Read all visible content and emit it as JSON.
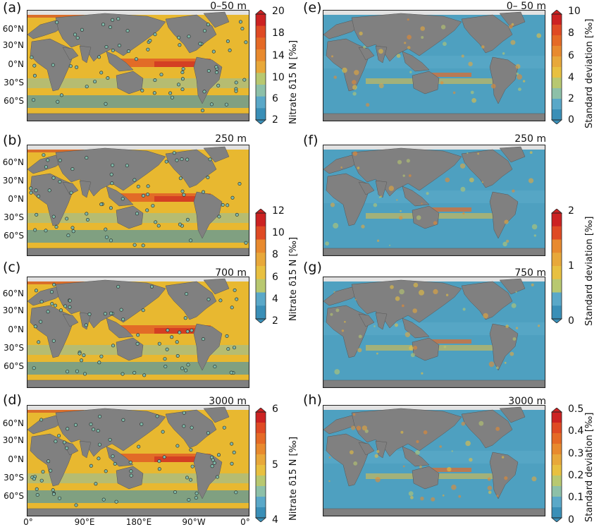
{
  "colors": {
    "land": "#808080",
    "ice": "#e2e2e2",
    "ocean_fill": "#e8b830",
    "ocean_sd": "#4ea0c0",
    "station": "#7fb8a8"
  },
  "palette": [
    "#3a8fb7",
    "#5aa8c8",
    "#8dc0a8",
    "#b8c870",
    "#e8c040",
    "#e8a83a",
    "#e88a2e",
    "#e56a26",
    "#df4a24",
    "#cc2222"
  ],
  "lat_labels": [
    "60°N",
    "30°N",
    "0°N",
    "30°S",
    "60°S"
  ],
  "lon_labels": [
    "0°",
    "90°E",
    "180°E",
    "90°W",
    "0°"
  ],
  "panels": [
    {
      "label": "(a)",
      "depth": "0–50 m",
      "kind": "mean"
    },
    {
      "label": "(b)",
      "depth": "250 m",
      "kind": "mean"
    },
    {
      "label": "(c)",
      "depth": "700 m",
      "kind": "mean"
    },
    {
      "label": "(d)",
      "depth": "3000 m",
      "kind": "mean"
    },
    {
      "label": "(e)",
      "depth": "0– 50 m",
      "kind": "sd"
    },
    {
      "label": "(f)",
      "depth": "250 m",
      "kind": "sd"
    },
    {
      "label": "(g)",
      "depth": "750 m",
      "kind": "sd"
    },
    {
      "label": "(h)",
      "depth": "3000 m",
      "kind": "sd"
    }
  ],
  "colorbars": {
    "left": [
      {
        "ticks": [
          "20",
          "18",
          "14",
          "10",
          "6",
          "2"
        ],
        "title": "Nitrate δ15 N [‰]"
      },
      {
        "ticks": [
          "12",
          "10",
          "8",
          "6",
          "4",
          "2"
        ],
        "title": "Nitrate δ15 N [‰]"
      },
      {
        "ticks": [
          "6",
          "5",
          "4"
        ],
        "title": "Nitrate δ15 N [‰]"
      }
    ],
    "right": [
      {
        "ticks": [
          "10",
          "8",
          "6",
          "4",
          "2",
          "0"
        ],
        "title": "Standard deviation [‰]"
      },
      {
        "ticks": [
          "2",
          "1",
          "0"
        ],
        "title": "Standard deviation [‰]"
      },
      {
        "ticks": [
          "0.5",
          "0.4",
          "0.3",
          "0.2",
          "0.1",
          "0"
        ],
        "title": "Standard deviation [‰]"
      }
    ]
  }
}
